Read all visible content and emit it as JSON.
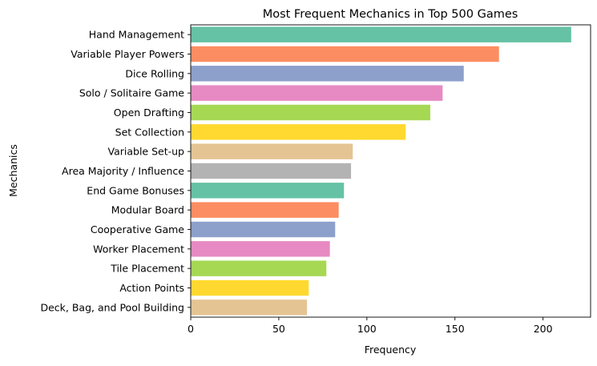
{
  "chart_data": {
    "type": "bar",
    "orientation": "horizontal",
    "title": "Most Frequent Mechanics in Top 500 Games",
    "xlabel": "Frequency",
    "ylabel": "Mechanics",
    "xlim": [
      0,
      227
    ],
    "xticks": [
      0,
      50,
      100,
      150,
      200
    ],
    "grid": false,
    "legend": "none",
    "categories": [
      "Hand Management",
      "Variable Player Powers",
      "Dice Rolling",
      "Solo / Solitaire Game",
      "Open Drafting",
      "Set Collection",
      "Variable Set-up",
      "Area Majority / Influence",
      "End Game Bonuses",
      "Modular Board",
      "Cooperative Game",
      "Worker Placement",
      "Tile Placement",
      "Action Points",
      "Deck, Bag, and Pool Building"
    ],
    "values": [
      216,
      175,
      155,
      143,
      136,
      122,
      92,
      91,
      87,
      84,
      82,
      79,
      77,
      67,
      66
    ],
    "colors": [
      "#66c2a5",
      "#fc8d62",
      "#8da0cb",
      "#e78ac3",
      "#a6d854",
      "#ffd92f",
      "#e5c494",
      "#b3b3b3",
      "#66c2a5",
      "#fc8d62",
      "#8da0cb",
      "#e78ac3",
      "#a6d854",
      "#ffd92f",
      "#e5c494"
    ]
  }
}
